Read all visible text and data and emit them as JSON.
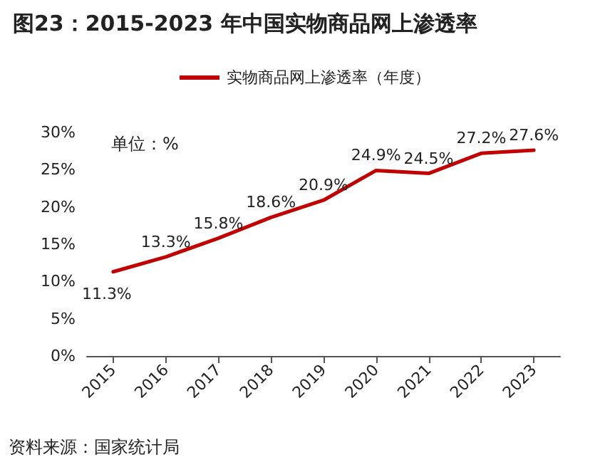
{
  "chart_data": {
    "type": "line",
    "title": "图23：2015-2023 年中国实物商品网上渗透率",
    "categories": [
      "2015",
      "2016",
      "2017",
      "2018",
      "2019",
      "2020",
      "2021",
      "2022",
      "2023"
    ],
    "series": [
      {
        "name": "实物商品网上渗透率（年度）",
        "color": "#c00000",
        "values": [
          11.3,
          13.3,
          15.8,
          18.6,
          20.9,
          24.9,
          24.5,
          27.2,
          27.6
        ],
        "value_labels": [
          "11.3%",
          "13.3%",
          "15.8%",
          "18.6%",
          "20.9%",
          "24.9%",
          "24.5%",
          "27.2%",
          "27.6%"
        ]
      }
    ],
    "ylim": [
      0,
      30
    ],
    "yticks": [
      {
        "value": 0,
        "label": "0%"
      },
      {
        "value": 5,
        "label": "5%"
      },
      {
        "value": 10,
        "label": "10%"
      },
      {
        "value": 15,
        "label": "15%"
      },
      {
        "value": 20,
        "label": "20%"
      },
      {
        "value": 25,
        "label": "25%"
      },
      {
        "value": 30,
        "label": "30%"
      }
    ],
    "grid": false,
    "legend": "top",
    "marker": "none",
    "line_style": "solid",
    "annotations": [
      "单位：%",
      "资料来源：国家统计局"
    ]
  }
}
